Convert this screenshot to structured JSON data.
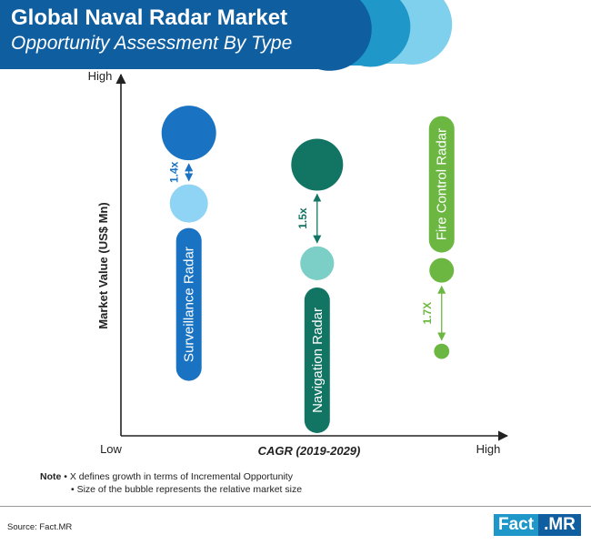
{
  "header": {
    "title": "Global Naval Radar Market",
    "subtitle": "Opportunity Assessment By Type"
  },
  "chart_data": {
    "type": "bubble",
    "xlabel": "CAGR (2019-2029)",
    "ylabel": "Market Value (US$ Mn)",
    "x_low": "Low",
    "x_high": "High",
    "y_low": "Low",
    "y_high": "High",
    "series": [
      {
        "name": "Surveillance Radar",
        "color": "#1a73c2",
        "light_color": "#8fd3f5",
        "multiplier": "1.4x",
        "points": [
          {
            "period": "end",
            "x": 0.18,
            "y": 0.86,
            "size": 1.0
          },
          {
            "period": "start",
            "x": 0.18,
            "y": 0.66,
            "size": 0.7
          }
        ]
      },
      {
        "name": "Navigation Radar",
        "color": "#127563",
        "light_color": "#7ccfc6",
        "multiplier": "1.5x",
        "points": [
          {
            "period": "end",
            "x": 0.52,
            "y": 0.77,
            "size": 0.95
          },
          {
            "period": "start",
            "x": 0.52,
            "y": 0.49,
            "size": 0.62
          }
        ]
      },
      {
        "name": "Fire Control Radar",
        "color": "#6cb741",
        "light_color": "#6cb741",
        "multiplier": "1.7X",
        "points": [
          {
            "period": "end",
            "x": 0.85,
            "y": 0.47,
            "size": 0.45
          },
          {
            "period": "start",
            "x": 0.85,
            "y": 0.24,
            "size": 0.28
          }
        ]
      }
    ]
  },
  "note": {
    "label": "Note",
    "line1": "• X defines growth in terms of Incremental Opportunity",
    "line2": "• Size of the bubble represents the relative market size"
  },
  "source": "Source: Fact.MR",
  "logo": {
    "part1": "Fact",
    "part2": ".MR"
  },
  "colors": {
    "header_dark": "#0f5ea0",
    "header_mid": "#1f97c8",
    "header_light": "#7fd0ec",
    "axis": "#222222"
  }
}
